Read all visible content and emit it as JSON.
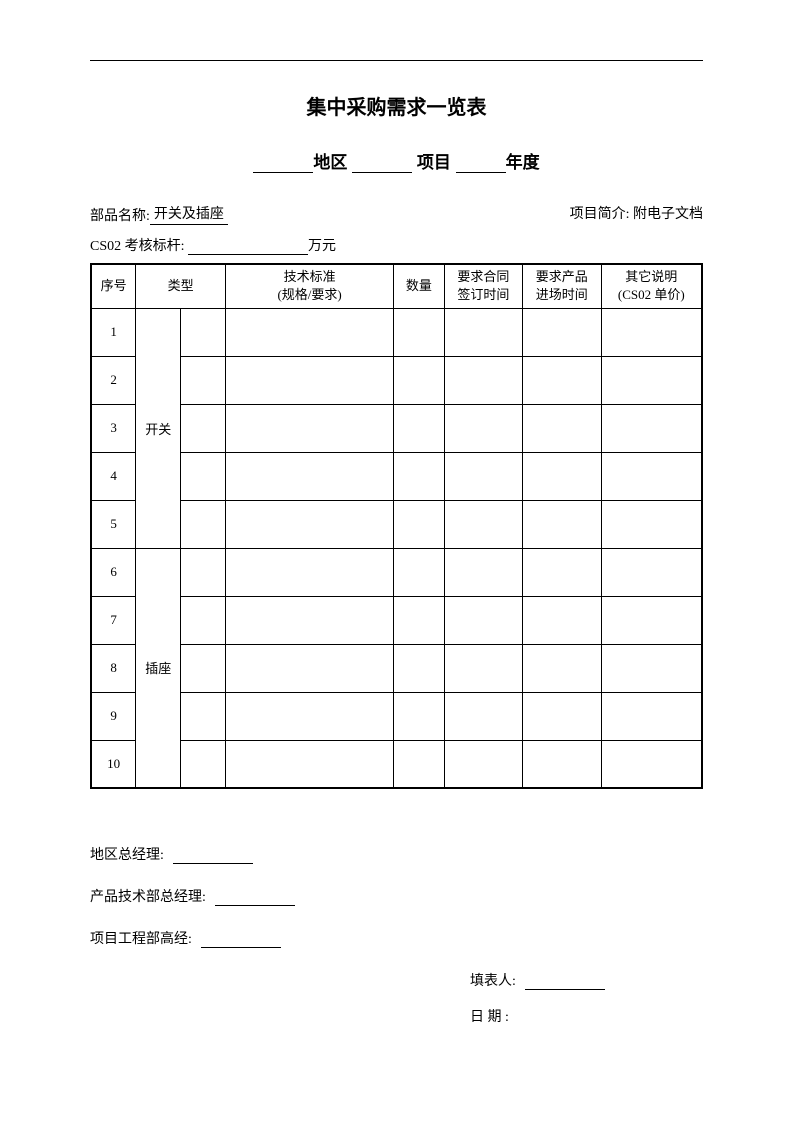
{
  "title": "集中采购需求一览表",
  "subtitle": {
    "region_label": "地区",
    "project_label": "项目",
    "year_label": "年度"
  },
  "meta": {
    "part_name_label": "部品名称:",
    "part_name_value": "开关及插座",
    "project_brief_label": "项目简介:",
    "project_brief_value": "附电子文档"
  },
  "cs_row": {
    "prefix": "CS02 考核标杆:",
    "unit": "万元"
  },
  "table": {
    "columns": {
      "seq": "序号",
      "type": "类型",
      "spec": "技术标准\n(规格/要求)",
      "qty": "数量",
      "contract_time": "要求合同\n签订时间",
      "product_time": "要求产品\n进场时间",
      "other": "其它说明\n(CS02 单价)"
    },
    "groups": [
      {
        "label": "开关",
        "rows": [
          1,
          2,
          3,
          4,
          5
        ]
      },
      {
        "label": "插座",
        "rows": [
          6,
          7,
          8,
          9,
          10
        ]
      }
    ]
  },
  "signatures": {
    "regional_manager": "地区总经理:",
    "tech_manager": "产品技术部总经理:",
    "project_manager": "项目工程部高经:",
    "filler": "填表人:",
    "date": "日  期 :"
  }
}
